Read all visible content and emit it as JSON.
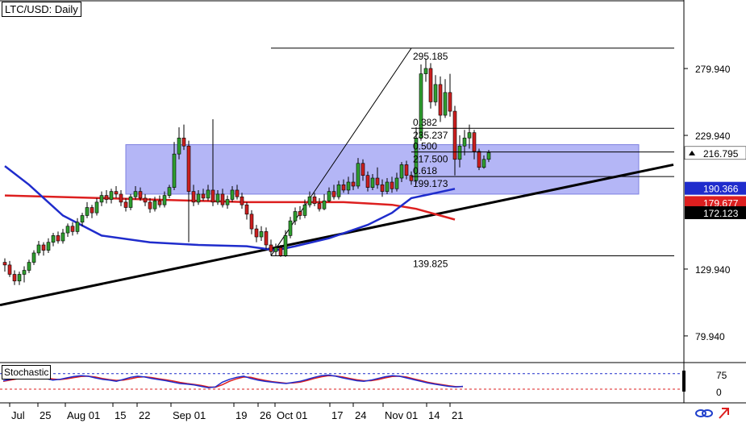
{
  "chart_title": "LTC/USD: Daily",
  "indicator_label": "Stochastic",
  "colors": {
    "background": "#ffffff",
    "bull_candle": "#2f9e2f",
    "bear_candle": "#cc1f1f",
    "ma_blue": "#1f2ccc",
    "ma_red": "#dd1f1f",
    "zone": "#a7a9f5",
    "trendline": "#000000",
    "current_price_bg": "#000000",
    "ma_blue_bg": "#1f2ccc",
    "ma_red_bg": "#dd1f1f"
  },
  "chart_data": {
    "type": "candlestick",
    "title": "LTC/USD: Daily",
    "ylim": [
      60,
      330
    ],
    "y_ticks": [
      {
        "value": 279.94,
        "label": "279.940"
      },
      {
        "value": 229.94,
        "label": "229.940"
      },
      {
        "value": 129.94,
        "label": "129.940"
      },
      {
        "value": 79.94,
        "label": "79.940"
      }
    ],
    "x_ticks": [
      "Jul",
      "25",
      "Aug 01",
      "15",
      "22",
      "Sep 01",
      "19",
      "26",
      "Oct 01",
      "17",
      "24",
      "Nov 01",
      "14",
      "21"
    ],
    "price_markers": {
      "current": {
        "value": 216.795,
        "label": "216.795"
      },
      "ma_blue": {
        "value": 190.366,
        "label": "190.366"
      },
      "ma_red": {
        "value": 179.677,
        "label": "179.677"
      },
      "other": {
        "value": 172.123,
        "label": "172.123"
      }
    },
    "fib_levels": [
      {
        "label": "295.185",
        "value": 295.185
      },
      {
        "label": "0.382",
        "value": 235.237,
        "price_label": "235.237"
      },
      {
        "label": "0.500",
        "value": 217.5,
        "price_label": "217.500"
      },
      {
        "label": "0.618",
        "value": 199.173,
        "price_label": "199.173"
      },
      {
        "label": "139.825",
        "value": 139.825
      }
    ],
    "zone": {
      "from": 186,
      "to": 223
    },
    "candles": [
      [
        135,
        133,
        138,
        128
      ],
      [
        133,
        126,
        136,
        124
      ],
      [
        126,
        121,
        129,
        118
      ],
      [
        121,
        126,
        128,
        118
      ],
      [
        126,
        129,
        132,
        120
      ],
      [
        129,
        135,
        137,
        127
      ],
      [
        135,
        142,
        144,
        133
      ],
      [
        142,
        148,
        151,
        140
      ],
      [
        148,
        144,
        150,
        140
      ],
      [
        144,
        150,
        153,
        142
      ],
      [
        150,
        155,
        157,
        147
      ],
      [
        155,
        151,
        158,
        149
      ],
      [
        151,
        157,
        160,
        149
      ],
      [
        157,
        162,
        164,
        154
      ],
      [
        162,
        158,
        165,
        155
      ],
      [
        158,
        165,
        168,
        156
      ],
      [
        165,
        170,
        172,
        162
      ],
      [
        170,
        176,
        180,
        168
      ],
      [
        176,
        172,
        178,
        168
      ],
      [
        172,
        180,
        183,
        170
      ],
      [
        180,
        185,
        188,
        177
      ],
      [
        185,
        182,
        189,
        179
      ],
      [
        182,
        188,
        190,
        179
      ],
      [
        188,
        186,
        192,
        183
      ],
      [
        186,
        180,
        189,
        177
      ],
      [
        180,
        176,
        183,
        173
      ],
      [
        176,
        184,
        186,
        174
      ],
      [
        184,
        188,
        192,
        182
      ],
      [
        188,
        183,
        191,
        181
      ],
      [
        183,
        180,
        186,
        177
      ],
      [
        180,
        175,
        183,
        172
      ],
      [
        175,
        181,
        184,
        173
      ],
      [
        181,
        178,
        185,
        176
      ],
      [
        178,
        185,
        188,
        176
      ],
      [
        185,
        191,
        193,
        183
      ],
      [
        191,
        216,
        225,
        189
      ],
      [
        216,
        228,
        236,
        212
      ],
      [
        228,
        222,
        238,
        219
      ],
      [
        222,
        188,
        226,
        150
      ],
      [
        188,
        180,
        193,
        177
      ],
      [
        180,
        186,
        189,
        178
      ],
      [
        186,
        183,
        190,
        181
      ],
      [
        183,
        189,
        193,
        181
      ],
      [
        189,
        180,
        242,
        177
      ],
      [
        180,
        186,
        189,
        178
      ],
      [
        186,
        178,
        190,
        176
      ],
      [
        178,
        182,
        185,
        175
      ],
      [
        182,
        189,
        192,
        180
      ],
      [
        189,
        184,
        193,
        182
      ],
      [
        184,
        178,
        187,
        175
      ],
      [
        178,
        171,
        180,
        167
      ],
      [
        171,
        160,
        174,
        156
      ],
      [
        160,
        154,
        163,
        150
      ],
      [
        154,
        158,
        162,
        151
      ],
      [
        158,
        148,
        161,
        145
      ],
      [
        148,
        143,
        152,
        140
      ],
      [
        143,
        146,
        149,
        140
      ],
      [
        146,
        140,
        148,
        139
      ],
      [
        140,
        155,
        159,
        139
      ],
      [
        155,
        166,
        169,
        153
      ],
      [
        166,
        173,
        176,
        163
      ],
      [
        173,
        170,
        177,
        167
      ],
      [
        170,
        178,
        182,
        168
      ],
      [
        178,
        184,
        188,
        176
      ],
      [
        184,
        179,
        187,
        177
      ],
      [
        179,
        175,
        183,
        173
      ],
      [
        175,
        181,
        186,
        174
      ],
      [
        181,
        188,
        191,
        180
      ],
      [
        188,
        184,
        193,
        182
      ],
      [
        184,
        193,
        196,
        182
      ],
      [
        193,
        189,
        197,
        187
      ],
      [
        189,
        195,
        199,
        186
      ],
      [
        195,
        192,
        202,
        189
      ],
      [
        192,
        209,
        213,
        190
      ],
      [
        209,
        200,
        212,
        196
      ],
      [
        200,
        191,
        203,
        188
      ],
      [
        191,
        198,
        201,
        189
      ],
      [
        198,
        193,
        206,
        190
      ],
      [
        193,
        188,
        197,
        184
      ],
      [
        188,
        195,
        198,
        186
      ],
      [
        195,
        190,
        199,
        187
      ],
      [
        190,
        198,
        202,
        188
      ],
      [
        198,
        208,
        210,
        195
      ],
      [
        208,
        200,
        211,
        197
      ],
      [
        200,
        196,
        203,
        193
      ],
      [
        196,
        228,
        236,
        194
      ],
      [
        228,
        276,
        283,
        226
      ],
      [
        276,
        280,
        287,
        270
      ],
      [
        280,
        255,
        284,
        250
      ],
      [
        255,
        268,
        275,
        252
      ],
      [
        268,
        245,
        274,
        240
      ],
      [
        245,
        262,
        272,
        243
      ],
      [
        262,
        248,
        276,
        244
      ],
      [
        248,
        212,
        252,
        200
      ],
      [
        212,
        222,
        230,
        206
      ],
      [
        222,
        228,
        234,
        215
      ],
      [
        228,
        232,
        238,
        220
      ],
      [
        232,
        218,
        234,
        212
      ],
      [
        218,
        206,
        220,
        204
      ],
      [
        206,
        212,
        215,
        205
      ],
      [
        212,
        217,
        219,
        210
      ]
    ],
    "ma_blue_points": [
      [
        0,
        207
      ],
      [
        5,
        193
      ],
      [
        12,
        170
      ],
      [
        20,
        155
      ],
      [
        30,
        150
      ],
      [
        40,
        148
      ],
      [
        50,
        147
      ],
      [
        56,
        144
      ],
      [
        60,
        147
      ],
      [
        67,
        153
      ],
      [
        75,
        163
      ],
      [
        80,
        172
      ],
      [
        84,
        183
      ],
      [
        88,
        186
      ],
      [
        93,
        190
      ]
    ],
    "ma_red_points": [
      [
        0,
        185
      ],
      [
        10,
        184
      ],
      [
        20,
        183
      ],
      [
        30,
        182
      ],
      [
        40,
        181
      ],
      [
        50,
        180
      ],
      [
        60,
        180
      ],
      [
        70,
        180
      ],
      [
        75,
        179
      ],
      [
        80,
        178
      ],
      [
        85,
        175
      ],
      [
        90,
        170
      ],
      [
        93,
        167
      ]
    ],
    "stoch_k": [
      50,
      55,
      60,
      62,
      65,
      63,
      58,
      52,
      55,
      60,
      65,
      68,
      66,
      60,
      55,
      52,
      48,
      55,
      62,
      66,
      63,
      58,
      54,
      50,
      45,
      40,
      38,
      35,
      30,
      25,
      28,
      45,
      55,
      62,
      66,
      58,
      52,
      48,
      45,
      42,
      40,
      44,
      48,
      55,
      62,
      68,
      70,
      66,
      60,
      55,
      50,
      48,
      52,
      58,
      64,
      68,
      66,
      60,
      54,
      48,
      42,
      38,
      34,
      30,
      28,
      30
    ],
    "stoch_d": [
      48,
      52,
      57,
      60,
      62,
      62,
      60,
      56,
      54,
      57,
      61,
      65,
      66,
      63,
      58,
      54,
      51,
      52,
      57,
      62,
      64,
      61,
      57,
      53,
      49,
      44,
      40,
      37,
      33,
      28,
      27,
      36,
      48,
      57,
      63,
      62,
      56,
      51,
      47,
      44,
      41,
      42,
      45,
      51,
      58,
      64,
      68,
      67,
      63,
      58,
      53,
      50,
      50,
      54,
      60,
      65,
      66,
      63,
      57,
      51,
      45,
      40,
      36,
      32,
      29,
      29
    ],
    "stoch_levels": [
      {
        "value": 75,
        "label": "75"
      },
      {
        "value": 0,
        "label": "0"
      }
    ]
  }
}
